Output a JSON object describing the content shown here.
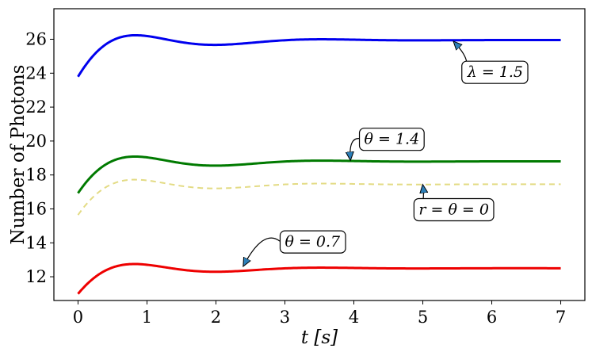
{
  "chart_data": {
    "type": "line",
    "xlabel": "t [s]",
    "ylabel": "Number of Photons",
    "xlim": [
      -0.35,
      7.35
    ],
    "ylim": [
      10.6,
      27.8
    ],
    "xticks": [
      0,
      1,
      2,
      3,
      4,
      5,
      6,
      7
    ],
    "yticks": [
      12,
      14,
      16,
      18,
      20,
      22,
      24,
      26
    ],
    "grid": false,
    "legend": "none",
    "t_end": 7,
    "series": [
      {
        "color": "#0000ee",
        "dash": "solid",
        "start": 24.2,
        "steady": 25.95,
        "amp": 1.65,
        "freq": 2.2,
        "decay": 0.95,
        "phase": -0.25
      },
      {
        "color": "#007a00",
        "dash": "solid",
        "start": 17.3,
        "steady": 18.8,
        "amp": 1.5,
        "freq": 2.2,
        "decay": 0.95,
        "phase": -0.25
      },
      {
        "color": "#e3db84",
        "dash": "dashed",
        "start": 16.0,
        "steady": 17.45,
        "amp": 1.45,
        "freq": 2.2,
        "decay": 0.95,
        "phase": -0.25
      },
      {
        "color": "#ee0000",
        "dash": "solid",
        "start": 11.3,
        "steady": 12.5,
        "amp": 1.25,
        "freq": 2.2,
        "decay": 0.95,
        "phase": -0.25
      }
    ],
    "annotations": [
      {
        "text": "λ = 1.5",
        "text_x": 6.05,
        "text_y": 24.1,
        "arrow_x": 5.45,
        "arrow_y": 25.85
      },
      {
        "text": "θ = 1.4",
        "text_x": 4.55,
        "text_y": 20.15,
        "arrow_x": 3.95,
        "arrow_y": 18.9
      },
      {
        "text": "r = θ = 0",
        "text_x": 5.45,
        "text_y": 16.0,
        "arrow_x": 5.0,
        "arrow_y": 17.4
      },
      {
        "text": "θ = 0.7",
        "text_x": 3.4,
        "text_y": 14.1,
        "arrow_x": 2.4,
        "arrow_y": 12.65
      }
    ]
  }
}
